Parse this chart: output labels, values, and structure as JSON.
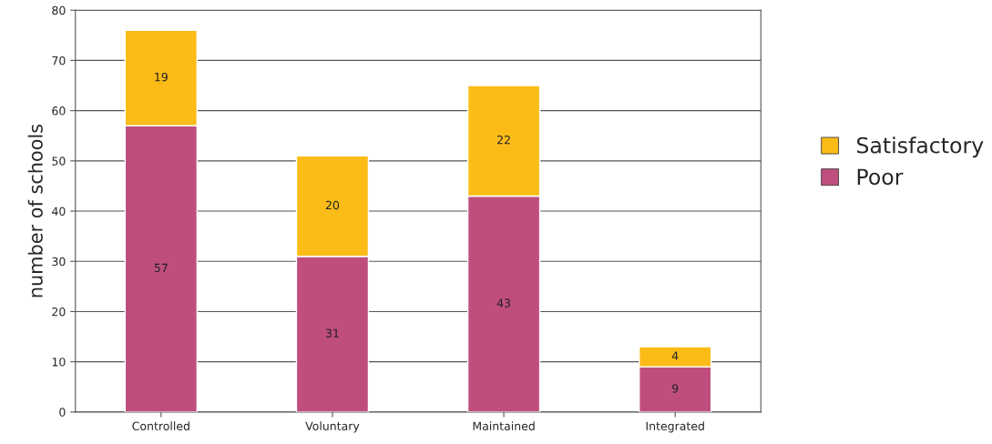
{
  "chart_data": {
    "type": "bar",
    "ylabel": "number of schools",
    "categories": [
      "Controlled",
      "Voluntary",
      "Maintained",
      "Integrated"
    ],
    "series": [
      {
        "name": "Poor",
        "color": "#bf4e7e",
        "values": [
          57,
          31,
          43,
          9
        ]
      },
      {
        "name": "Satisfactory",
        "color": "#fbbc18",
        "values": [
          19,
          20,
          22,
          4
        ]
      }
    ],
    "stacked": true,
    "data_labels": true,
    "ylim": [
      0,
      80
    ],
    "yticks": [
      0,
      10,
      20,
      30,
      40,
      50,
      60,
      70,
      80
    ],
    "grid": "y",
    "legend": "right"
  }
}
